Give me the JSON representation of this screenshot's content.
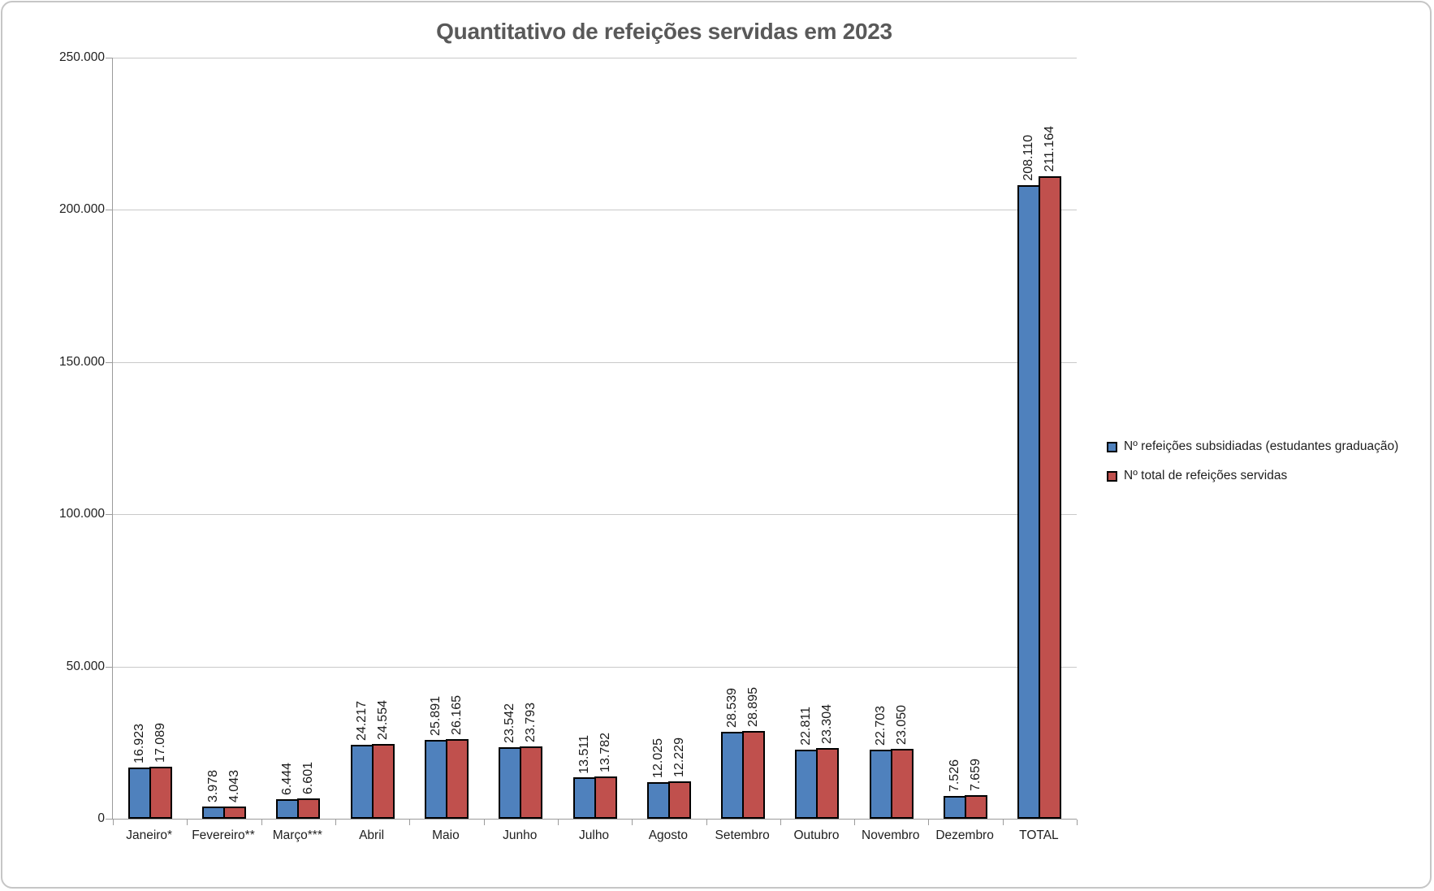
{
  "chart_data": {
    "type": "bar",
    "title": "Quantitativo de refeições servidas em 2023",
    "categories": [
      "Janeiro*",
      "Fevereiro**",
      "Março***",
      "Abril",
      "Maio",
      "Junho",
      "Julho",
      "Agosto",
      "Setembro",
      "Outubro",
      "Novembro",
      "Dezembro",
      "TOTAL"
    ],
    "series": [
      {
        "name": "Nº refeições subsidiadas (estudantes graduação)",
        "color": "#4F81BD",
        "values": [
          16923,
          3978,
          6444,
          24217,
          25891,
          23542,
          13511,
          12025,
          28539,
          22811,
          22703,
          7526,
          208110
        ],
        "labels": [
          "16.923",
          "3.978",
          "6.444",
          "24.217",
          "25.891",
          "23.542",
          "13.511",
          "12.025",
          "28.539",
          "22.811",
          "22.703",
          "7.526",
          "208.110"
        ]
      },
      {
        "name": "Nº total de refeições servidas",
        "color": "#C0504D",
        "values": [
          17089,
          4043,
          6601,
          24554,
          26165,
          23793,
          13782,
          12229,
          28895,
          23304,
          23050,
          7659,
          211164
        ],
        "labels": [
          "17.089",
          "4.043",
          "6.601",
          "24.554",
          "26.165",
          "23.793",
          "13.782",
          "12.229",
          "28.895",
          "23.304",
          "23.050",
          "7.659",
          "211.164"
        ]
      }
    ],
    "y_axis": {
      "min": 0,
      "max": 250000,
      "step": 50000,
      "ticks": [
        "0",
        "50.000",
        "100.000",
        "150.000",
        "200.000",
        "250.000"
      ]
    },
    "grid": true,
    "legend_position": "right",
    "data_label_rotation": -90,
    "colors": {
      "bar_border": "#000000",
      "axis": "#9B9B9B",
      "gridline": "#C9C9C9",
      "title_text": "#595959",
      "frame_border": "#C6C6C6",
      "label_text": "#1F1F1F"
    }
  }
}
